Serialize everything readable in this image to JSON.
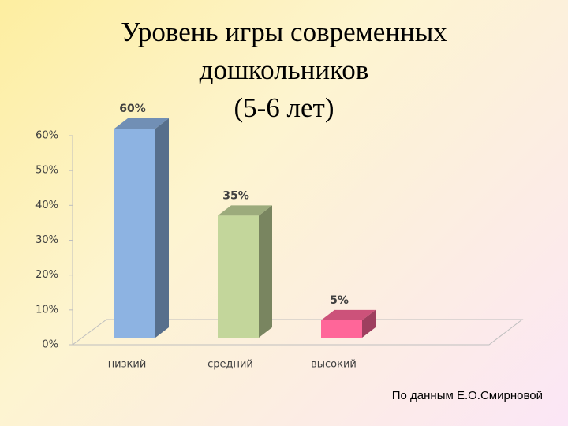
{
  "chart_data": {
    "type": "bar3d",
    "title": [
      "Уровень игры современных",
      "дошкольников",
      "(5-6 лет)"
    ],
    "categories": [
      "низкий",
      "средний",
      "высокий"
    ],
    "values": [
      60,
      35,
      5
    ],
    "value_labels": [
      "60%",
      "35%",
      "5%"
    ],
    "colors": [
      "#8db3e2",
      "#c3d69b",
      "#ff6699"
    ],
    "ylim": [
      0,
      60
    ],
    "yticks": [
      {
        "value": 0,
        "label": "0%"
      },
      {
        "value": 10,
        "label": "10%"
      },
      {
        "value": 20,
        "label": "20%"
      },
      {
        "value": 30,
        "label": "30%"
      },
      {
        "value": 40,
        "label": "40%"
      },
      {
        "value": 50,
        "label": "50%"
      },
      {
        "value": 60,
        "label": "60%"
      }
    ],
    "grid": false,
    "source": "По данным Е.О.Смирновой"
  }
}
